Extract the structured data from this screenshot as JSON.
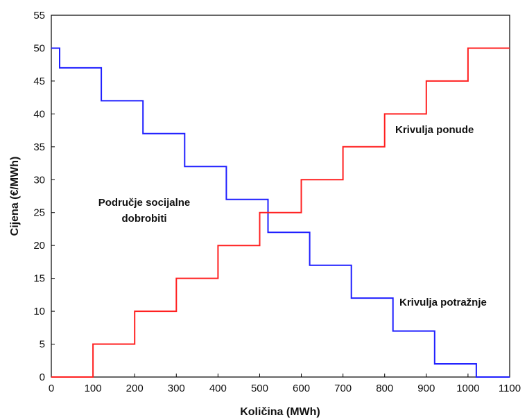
{
  "chart_data": {
    "type": "line",
    "step": "post",
    "title": "",
    "xlabel": "Količina (MWh)",
    "ylabel": "Cijena (€/MWh)",
    "xlim": [
      0,
      1100
    ],
    "ylim": [
      0,
      55
    ],
    "xticks": [
      0,
      100,
      200,
      300,
      400,
      500,
      600,
      700,
      800,
      900,
      1000,
      1100
    ],
    "yticks": [
      0,
      5,
      10,
      15,
      20,
      25,
      30,
      35,
      40,
      45,
      50,
      55
    ],
    "grid": false,
    "series": [
      {
        "name": "Krivulja potražnje",
        "color": "#1f1fff",
        "x": [
          0,
          20,
          120,
          220,
          320,
          420,
          520,
          620,
          720,
          820,
          920,
          1020
        ],
        "y": [
          50,
          47,
          42,
          37,
          32,
          27,
          22,
          17,
          12,
          7,
          2,
          0
        ]
      },
      {
        "name": "Krivulja ponude",
        "color": "#ff2020",
        "x": [
          0,
          100,
          200,
          300,
          400,
          500,
          600,
          700,
          800,
          900,
          1000,
          1100
        ],
        "y": [
          0,
          5,
          10,
          15,
          20,
          25,
          30,
          35,
          40,
          45,
          50,
          50
        ]
      }
    ],
    "annotations": [
      {
        "text": "Krivulja ponude"
      },
      {
        "text": "Krivulja potražnje"
      },
      {
        "text": "Područje socijalne"
      },
      {
        "text": "dobrobiti"
      }
    ]
  }
}
